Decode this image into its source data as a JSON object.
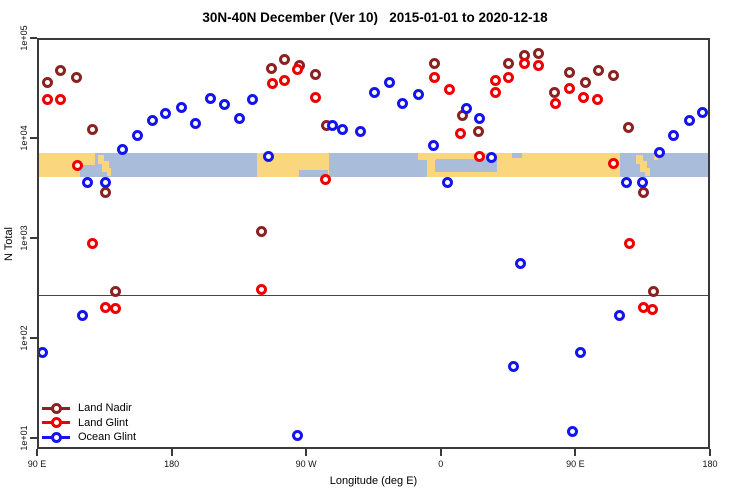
{
  "title": "30N-40N December (Ver 10)   2015-01-01 to 2020-12-18",
  "colors": {
    "land_nadir": "#8B2121",
    "land_glint": "#EE0000",
    "ocean_glint": "#1414EE",
    "strip_land": "#FAD67E",
    "strip_ocean": "#A9BDDB",
    "frame": "#3a3a3a",
    "threshold_line": "#474747"
  },
  "chart_data": {
    "type": "scatter",
    "title": "30N-40N December (Ver 10)   2015-01-01 to 2020-12-18",
    "xlabel": "Longitude (deg E)",
    "ylabel": "N Total",
    "grid": false,
    "legend_position": "bottom-left",
    "x_axis": {
      "min": 90,
      "max": 540,
      "tick_lons": [
        90,
        180,
        270,
        360,
        450,
        540
      ],
      "tick_labels": [
        "90 E",
        "180",
        "90 W",
        "0",
        "90 E",
        "180"
      ]
    },
    "y_axis": {
      "scale": "log",
      "top_value": 100000,
      "bottom_value": 7.8,
      "tick_values": [
        100000,
        10000,
        1000,
        100,
        10
      ],
      "tick_labels": [
        "1e+05",
        "1e+04",
        "1e+03",
        "1e+02",
        "1e+01"
      ]
    },
    "threshold_line_value": 270,
    "series": [
      {
        "name": "Land Nadir",
        "color_key": "land_nadir",
        "points": [
          [
            96.7,
            35500
          ],
          [
            106.0,
            46800
          ],
          [
            116.1,
            40700
          ],
          [
            126.8,
            12300
          ],
          [
            136.1,
            2820
          ],
          [
            247.1,
            49000
          ],
          [
            255.2,
            60300
          ],
          [
            265.8,
            52500
          ],
          [
            276.5,
            42700
          ],
          [
            283.9,
            13200
          ],
          [
            356.1,
            55000
          ],
          [
            374.2,
            16600
          ],
          [
            384.9,
            11700
          ],
          [
            405.6,
            56200
          ],
          [
            415.7,
            67600
          ],
          [
            425.0,
            69200
          ],
          [
            435.7,
            28200
          ],
          [
            445.8,
            44700
          ],
          [
            456.5,
            35500
          ],
          [
            465.2,
            46800
          ],
          [
            475.2,
            41700
          ],
          [
            485.2,
            12600
          ],
          [
            495.3,
            2820
          ],
          [
            142.2,
            295
          ],
          [
            239.8,
            1170
          ],
          [
            501.9,
            295
          ]
        ]
      },
      {
        "name": "Land Glint",
        "color_key": "land_glint",
        "points": [
          [
            96.7,
            24000
          ],
          [
            106.0,
            24000
          ],
          [
            117.4,
            5370
          ],
          [
            247.8,
            34700
          ],
          [
            255.8,
            38000
          ],
          [
            264.5,
            47900
          ],
          [
            276.5,
            25700
          ],
          [
            283.2,
            3890
          ],
          [
            356.1,
            40700
          ],
          [
            365.5,
            30900
          ],
          [
            373.5,
            11000
          ],
          [
            385.6,
            6460
          ],
          [
            396.9,
            38000
          ],
          [
            396.9,
            28200
          ],
          [
            405.6,
            40700
          ],
          [
            416.3,
            55000
          ],
          [
            425.0,
            53700
          ],
          [
            436.4,
            21900
          ],
          [
            445.8,
            31600
          ],
          [
            455.1,
            25700
          ],
          [
            464.5,
            24000
          ],
          [
            475.8,
            5500
          ],
          [
            126.8,
            891
          ],
          [
            136.1,
            200
          ],
          [
            142.2,
            195
          ],
          [
            239.8,
            309
          ],
          [
            485.9,
            891
          ],
          [
            495.3,
            200
          ],
          [
            501.3,
            191
          ]
        ]
      },
      {
        "name": "Ocean Glint",
        "color_key": "ocean_glint",
        "points": [
          [
            94.0,
            70.8
          ],
          [
            120.1,
            166
          ],
          [
            124.1,
            3550
          ],
          [
            136.1,
            3550
          ],
          [
            147.5,
            7590
          ],
          [
            156.9,
            10500
          ],
          [
            166.9,
            15100
          ],
          [
            175.6,
            17400
          ],
          [
            186.3,
            20000
          ],
          [
            196.3,
            14100
          ],
          [
            205.7,
            25100
          ],
          [
            215.7,
            21400
          ],
          [
            225.7,
            15500
          ],
          [
            234.4,
            24500
          ],
          [
            244.5,
            6460
          ],
          [
            264.5,
            10.5
          ],
          [
            287.9,
            13200
          ],
          [
            294.6,
            12300
          ],
          [
            306.0,
            11700
          ],
          [
            316.0,
            28800
          ],
          [
            325.4,
            35500
          ],
          [
            334.7,
            21900
          ],
          [
            345.4,
            27500
          ],
          [
            354.8,
            8320
          ],
          [
            364.8,
            3550
          ],
          [
            376.9,
            19500
          ],
          [
            385.6,
            15800
          ],
          [
            393.6,
            6310
          ],
          [
            408.3,
            51.3
          ],
          [
            413.0,
            562
          ],
          [
            447.8,
            11.7
          ],
          [
            453.1,
            70.8
          ],
          [
            479.2,
            166
          ],
          [
            484.5,
            3550
          ],
          [
            494.6,
            3630
          ],
          [
            505.9,
            7240
          ],
          [
            515.3,
            10500
          ],
          [
            526.0,
            15100
          ],
          [
            535.3,
            17800
          ]
        ]
      }
    ],
    "land_ocean_strip": {
      "y_top_value": 7080,
      "y_bottom_value": 4070,
      "rects": [
        {
          "lon1": 90,
          "lon2": 540,
          "f1": 0,
          "f2": 1,
          "surface": "ocean"
        },
        {
          "lon1": 90,
          "lon2": 128.5,
          "f1": 0,
          "f2": 1,
          "surface": "land"
        },
        {
          "lon1": 237,
          "lon2": 285,
          "f1": 0,
          "f2": 1,
          "surface": "land"
        },
        {
          "lon1": 350.5,
          "lon2": 480,
          "f1": 0,
          "f2": 1,
          "surface": "land"
        },
        {
          "lon1": 119,
          "lon2": 128.5,
          "f1": 0.5,
          "f2": 1,
          "surface": "ocean"
        },
        {
          "lon1": 265.5,
          "lon2": 284.5,
          "f1": 0.72,
          "f2": 1,
          "surface": "ocean"
        },
        {
          "lon1": 356,
          "lon2": 397.5,
          "f1": 0.25,
          "f2": 0.78,
          "surface": "ocean"
        },
        {
          "lon1": 407.5,
          "lon2": 414,
          "f1": 0,
          "f2": 0.22,
          "surface": "ocean"
        },
        {
          "lon1": 344.5,
          "lon2": 356.5,
          "f1": 0,
          "f2": 0.3,
          "surface": "land"
        },
        {
          "lon1": 130.5,
          "lon2": 135,
          "f1": 0.08,
          "f2": 0.45,
          "surface": "land"
        },
        {
          "lon1": 133.5,
          "lon2": 138,
          "f1": 0.35,
          "f2": 0.8,
          "surface": "land"
        },
        {
          "lon1": 136.8,
          "lon2": 139.8,
          "f1": 0.62,
          "f2": 0.95,
          "surface": "land"
        },
        {
          "lon1": 490.5,
          "lon2": 495,
          "f1": 0.08,
          "f2": 0.45,
          "surface": "land"
        },
        {
          "lon1": 493.5,
          "lon2": 498,
          "f1": 0.35,
          "f2": 0.8,
          "surface": "land"
        },
        {
          "lon1": 496.8,
          "lon2": 499.8,
          "f1": 0.62,
          "f2": 0.95,
          "surface": "land"
        },
        {
          "lon1": 502.5,
          "lon2": 505.5,
          "f1": 0.05,
          "f2": 0.3,
          "surface": "land"
        }
      ]
    }
  },
  "legend": {
    "items": [
      {
        "label": "Land Nadir"
      },
      {
        "label": "Land Glint"
      },
      {
        "label": "Ocean Glint"
      }
    ]
  }
}
